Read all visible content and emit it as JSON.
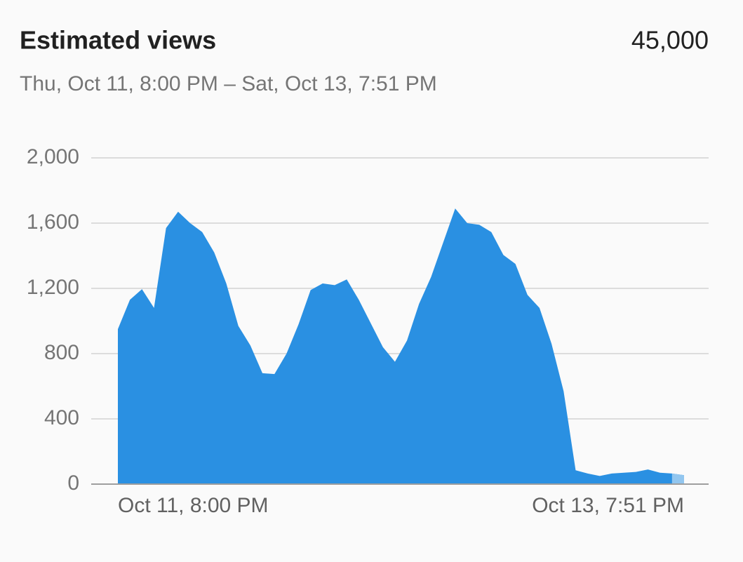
{
  "chart_data": {
    "type": "area",
    "title": "Estimated views",
    "total": "45,000",
    "subtitle": "Thu, Oct 11, 8:00 PM – Sat, Oct 13, 7:51 PM",
    "color": "#2a90e2",
    "partial_color": "#92c6ef",
    "categories": [
      "Oct 11, 8:00 PM",
      null,
      null,
      null,
      null,
      null,
      null,
      null,
      null,
      null,
      null,
      null,
      null,
      null,
      null,
      null,
      null,
      null,
      null,
      null,
      null,
      null,
      null,
      null,
      null,
      null,
      null,
      null,
      null,
      null,
      null,
      null,
      null,
      null,
      null,
      null,
      null,
      null,
      null,
      null,
      null,
      null,
      null,
      null,
      null,
      null,
      null,
      "Oct 13, 7:51 PM"
    ],
    "values": [
      950,
      1130,
      1195,
      1080,
      1570,
      1670,
      1600,
      1545,
      1420,
      1230,
      970,
      850,
      680,
      675,
      800,
      980,
      1190,
      1230,
      1220,
      1255,
      1130,
      985,
      840,
      750,
      880,
      1105,
      1270,
      1480,
      1690,
      1600,
      1590,
      1545,
      1405,
      1350,
      1160,
      1080,
      860,
      570,
      85,
      65,
      50,
      65,
      70,
      75,
      90,
      70,
      65,
      55
    ],
    "ylim": [
      0,
      2000
    ],
    "yticks": [
      0,
      400,
      800,
      {
        "value": 1200,
        "label": "1,200"
      },
      {
        "value": 1600,
        "label": "1,600"
      },
      {
        "value": 2000,
        "label": "2,000"
      }
    ],
    "grid": true
  }
}
